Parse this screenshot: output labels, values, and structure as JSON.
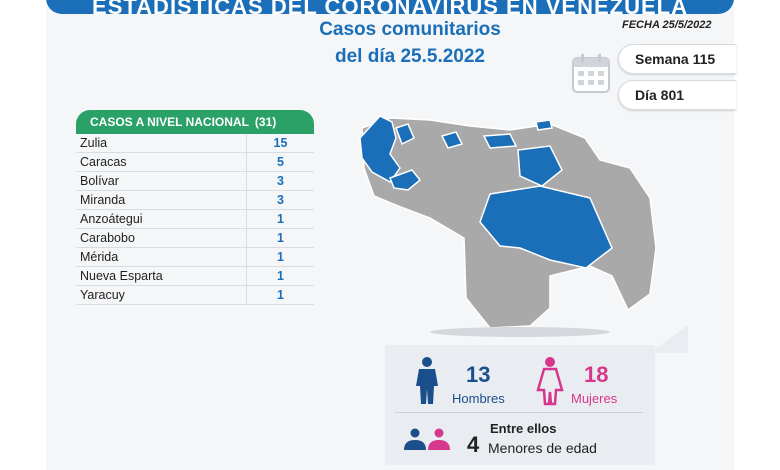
{
  "banner": {
    "title": "ESTADÍSTICAS DEL CORONAVIRUS EN VENEZUELA"
  },
  "header": {
    "line1": "Casos comunitarios",
    "line2": "del día 25.5.2022",
    "fecha": "FECHA 25/5/2022"
  },
  "pills": {
    "week": "Semana 115",
    "day": "Día 801"
  },
  "table": {
    "title": "CASOS A NIVEL NACIONAL",
    "total": "(31)",
    "rows": [
      {
        "state": "Zulia",
        "cases": "15"
      },
      {
        "state": "Caracas",
        "cases": "5"
      },
      {
        "state": "Bolívar",
        "cases": "3"
      },
      {
        "state": "Miranda",
        "cases": "3"
      },
      {
        "state": "Anzoátegui",
        "cases": "1"
      },
      {
        "state": "Carabobo",
        "cases": "1"
      },
      {
        "state": "Mérida",
        "cases": "1"
      },
      {
        "state": "Nueva Esparta",
        "cases": "1"
      },
      {
        "state": "Yaracuy",
        "cases": "1"
      }
    ]
  },
  "stats": {
    "men": {
      "count": "13",
      "label": "Hombres"
    },
    "women": {
      "count": "18",
      "label": "Mujeres"
    },
    "minors": {
      "intro": "Entre ellos",
      "count": "4",
      "label": "Menores de edad"
    }
  },
  "colors": {
    "blue": "#1b6fb8",
    "green": "#29a167",
    "pink": "#d6378c",
    "map_gray": "#a9a9a9",
    "map_blue": "#1b6fb8"
  },
  "icons": [
    "calendar-icon",
    "male-icon",
    "female-icon",
    "children-icon",
    "virus-icon"
  ]
}
